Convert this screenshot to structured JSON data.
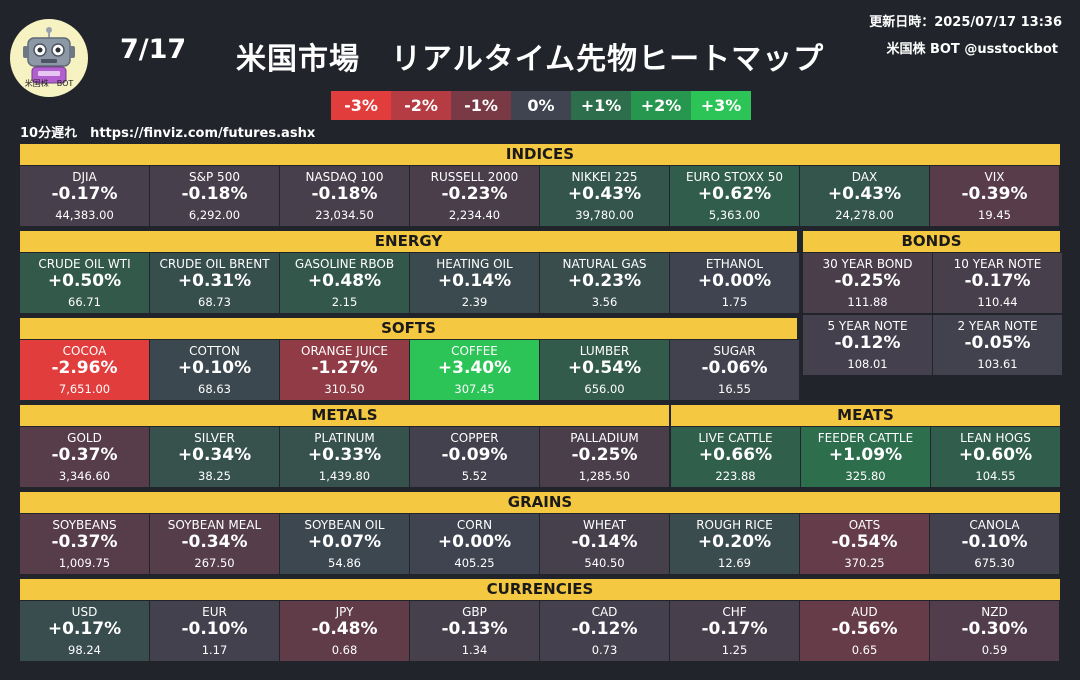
{
  "header": {
    "date": "7/17",
    "title": "米国市場　リアルタイム先物ヒートマップ",
    "updated": "更新日時：2025/07/17 13:36",
    "account": "米国株 BOT @usstockbot",
    "logo_label": "米国株　BOT",
    "delay_note": "10分遅れ　https://finviz.com/futures.ashx"
  },
  "legend": [
    {
      "label": "-3%",
      "color": "#e23d3d"
    },
    {
      "label": "-2%",
      "color": "#b53c43"
    },
    {
      "label": "-1%",
      "color": "#7a3a45"
    },
    {
      "label": "0%",
      "color": "#3f4450"
    },
    {
      "label": "+1%",
      "color": "#2d6e4c"
    },
    {
      "label": "+2%",
      "color": "#27974f"
    },
    {
      "label": "+3%",
      "color": "#2cc456"
    }
  ],
  "sections": {
    "indices": "INDICES",
    "energy": "ENERGY",
    "bonds": "BONDS",
    "softs": "SOFTS",
    "metals": "METALS",
    "meats": "MEATS",
    "grains": "GRAINS",
    "currencies": "CURRENCIES"
  },
  "indices": [
    {
      "name": "DJIA",
      "pct": "-0.17%",
      "price": "44,383.00",
      "color": "#483f4c"
    },
    {
      "name": "S&P 500",
      "pct": "-0.18%",
      "price": "6,292.00",
      "color": "#483f4c"
    },
    {
      "name": "NASDAQ 100",
      "pct": "-0.18%",
      "price": "23,034.50",
      "color": "#483f4c"
    },
    {
      "name": "RUSSELL 2000",
      "pct": "-0.23%",
      "price": "2,234.40",
      "color": "#4a3e4b"
    },
    {
      "name": "NIKKEI 225",
      "pct": "+0.43%",
      "price": "39,780.00",
      "color": "#34554b"
    },
    {
      "name": "EURO STOXX 50",
      "pct": "+0.62%",
      "price": "5,363.00",
      "color": "#315e4c"
    },
    {
      "name": "DAX",
      "pct": "+0.43%",
      "price": "24,278.00",
      "color": "#34554b"
    },
    {
      "name": "VIX",
      "pct": "-0.39%",
      "price": "19.45",
      "color": "#583c4a"
    }
  ],
  "energy": [
    {
      "name": "CRUDE OIL WTI",
      "pct": "+0.50%",
      "price": "66.71",
      "color": "#33594b"
    },
    {
      "name": "CRUDE OIL BRENT",
      "pct": "+0.31%",
      "price": "68.73",
      "color": "#374f4c"
    },
    {
      "name": "GASOLINE RBOB",
      "pct": "+0.48%",
      "price": "2.15",
      "color": "#33584b"
    },
    {
      "name": "HEATING OIL",
      "pct": "+0.14%",
      "price": "2.39",
      "color": "#3b4a4e"
    },
    {
      "name": "NATURAL GAS",
      "pct": "+0.23%",
      "price": "3.56",
      "color": "#394d4d"
    },
    {
      "name": "ETHANOL",
      "pct": "+0.00%",
      "price": "1.75",
      "color": "#3f4450"
    }
  ],
  "bonds": [
    {
      "name": "30 YEAR BOND",
      "pct": "-0.25%",
      "price": "111.88",
      "color": "#4a3e4b"
    },
    {
      "name": "10 YEAR NOTE",
      "pct": "-0.17%",
      "price": "110.44",
      "color": "#483f4c"
    },
    {
      "name": "5 YEAR NOTE",
      "pct": "-0.12%",
      "price": "108.01",
      "color": "#45404d"
    },
    {
      "name": "2 YEAR NOTE",
      "pct": "-0.05%",
      "price": "103.61",
      "color": "#42424e"
    }
  ],
  "softs": [
    {
      "name": "COCOA",
      "pct": "-2.96%",
      "price": "7,651.00",
      "color": "#e23d3d"
    },
    {
      "name": "COTTON",
      "pct": "+0.10%",
      "price": "68.63",
      "color": "#3c484f"
    },
    {
      "name": "ORANGE JUICE",
      "pct": "-1.27%",
      "price": "310.50",
      "color": "#903b45"
    },
    {
      "name": "COFFEE",
      "pct": "+3.40%",
      "price": "307.45",
      "color": "#2cc456"
    },
    {
      "name": "LUMBER",
      "pct": "+0.54%",
      "price": "656.00",
      "color": "#325b4b"
    },
    {
      "name": "SUGAR",
      "pct": "-0.06%",
      "price": "16.55",
      "color": "#42424e"
    }
  ],
  "metals": [
    {
      "name": "GOLD",
      "pct": "-0.37%",
      "price": "3,346.60",
      "color": "#573c4a"
    },
    {
      "name": "SILVER",
      "pct": "+0.34%",
      "price": "38.25",
      "color": "#37524c"
    },
    {
      "name": "PLATINUM",
      "pct": "+0.33%",
      "price": "1,439.80",
      "color": "#37524c"
    },
    {
      "name": "COPPER",
      "pct": "-0.09%",
      "price": "5.52",
      "color": "#43414e"
    },
    {
      "name": "PALLADIUM",
      "pct": "-0.25%",
      "price": "1,285.50",
      "color": "#4a3e4b"
    }
  ],
  "meats": [
    {
      "name": "LIVE CATTLE",
      "pct": "+0.66%",
      "price": "223.88",
      "color": "#305f4c"
    },
    {
      "name": "FEEDER CATTLE",
      "pct": "+1.09%",
      "price": "325.80",
      "color": "#2d6e4c"
    },
    {
      "name": "LEAN HOGS",
      "pct": "+0.60%",
      "price": "104.55",
      "color": "#315d4c"
    }
  ],
  "grains": [
    {
      "name": "SOYBEANS",
      "pct": "-0.37%",
      "price": "1,009.75",
      "color": "#573c4a"
    },
    {
      "name": "SOYBEAN MEAL",
      "pct": "-0.34%",
      "price": "267.50",
      "color": "#553d4a"
    },
    {
      "name": "SOYBEAN OIL",
      "pct": "+0.07%",
      "price": "54.86",
      "color": "#3d474f"
    },
    {
      "name": "CORN",
      "pct": "+0.00%",
      "price": "405.25",
      "color": "#3f4450"
    },
    {
      "name": "WHEAT",
      "pct": "-0.14%",
      "price": "540.50",
      "color": "#46404d"
    },
    {
      "name": "ROUGH RICE",
      "pct": "+0.20%",
      "price": "12.69",
      "color": "#3a4c4e"
    },
    {
      "name": "OATS",
      "pct": "-0.54%",
      "price": "370.25",
      "color": "#653c49"
    },
    {
      "name": "CANOLA",
      "pct": "-0.10%",
      "price": "675.30",
      "color": "#44414e"
    }
  ],
  "currencies": [
    {
      "name": "USD",
      "pct": "+0.17%",
      "price": "98.24",
      "color": "#394d4e"
    },
    {
      "name": "EUR",
      "pct": "-0.10%",
      "price": "1.17",
      "color": "#44414e"
    },
    {
      "name": "JPY",
      "pct": "-0.48%",
      "price": "0.68",
      "color": "#603c49"
    },
    {
      "name": "GBP",
      "pct": "-0.13%",
      "price": "1.34",
      "color": "#46404d"
    },
    {
      "name": "CAD",
      "pct": "-0.12%",
      "price": "0.73",
      "color": "#45404d"
    },
    {
      "name": "CHF",
      "pct": "-0.17%",
      "price": "1.25",
      "color": "#483f4c"
    },
    {
      "name": "AUD",
      "pct": "-0.56%",
      "price": "0.65",
      "color": "#663c49"
    },
    {
      "name": "NZD",
      "pct": "-0.30%",
      "price": "0.59",
      "color": "#513d4b"
    }
  ]
}
